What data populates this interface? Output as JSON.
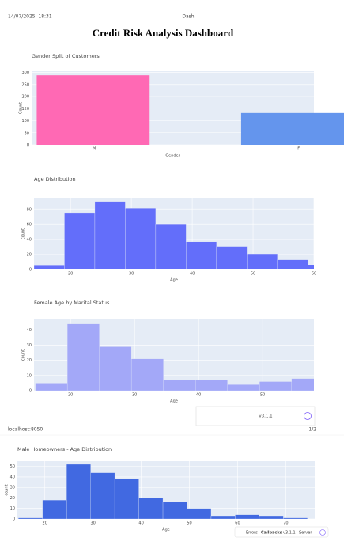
{
  "header": {
    "timestamp": "14/07/2025, 18:31",
    "page_title": "Dash",
    "dashboard_title": "Credit Risk Analysis Dashboard"
  },
  "footer": {
    "url": "localhost:8050",
    "page_number": "1/2"
  },
  "version_badge": {
    "version": "v3.1.1"
  },
  "debug_bar": {
    "errors": "Errors",
    "callbacks": "Callbacks",
    "version": "v3.1.1",
    "server": "Server"
  },
  "chart_data": [
    {
      "type": "bar",
      "title": "Gender Split of Customers",
      "x_label": "Gender",
      "y_label": "Count",
      "categories": [
        "M",
        "F"
      ],
      "values": [
        288,
        135
      ],
      "colors": [
        "#ff69b4",
        "#6495ed"
      ],
      "ylim": [
        0,
        305
      ],
      "yticks": [
        0,
        50,
        100,
        150,
        200,
        250,
        300
      ],
      "grid": true
    },
    {
      "type": "histogram",
      "title": "Age Distribution",
      "x_label": "Age",
      "y_label": "count",
      "bins": [
        14,
        19,
        24,
        29,
        34,
        39,
        44,
        49,
        54,
        59,
        64
      ],
      "values": [
        5,
        75,
        90,
        81,
        60,
        37,
        30,
        20,
        13,
        6
      ],
      "color": "#636efa",
      "xlim": [
        14,
        60
      ],
      "xticks": [
        20,
        30,
        40,
        50,
        60
      ],
      "ylim": [
        0,
        95
      ],
      "yticks": [
        0,
        20,
        40,
        60,
        80
      ],
      "grid": true
    },
    {
      "type": "histogram",
      "title": "Female Age by Marital Status",
      "x_label": "Age",
      "y_label": "count",
      "bins": [
        14.5,
        19.5,
        24.5,
        29.5,
        34.5,
        39.5,
        44.5,
        49.5,
        54.5,
        59.5
      ],
      "values": [
        5,
        44,
        29,
        21,
        7,
        7,
        4,
        6,
        8
      ],
      "color": "#a3a8f8",
      "xlim": [
        14.3,
        58
      ],
      "xticks": [
        20,
        30,
        40,
        50
      ],
      "ylim": [
        0,
        47
      ],
      "yticks": [
        0,
        10,
        20,
        30,
        40
      ],
      "grid": true
    },
    {
      "type": "histogram",
      "title": "Male Homeowners - Age Distribution",
      "x_label": "Age",
      "y_label": "count",
      "bins": [
        14.5,
        19.5,
        24.5,
        29.5,
        34.5,
        39.5,
        44.5,
        49.5,
        54.5,
        59.5,
        64.5,
        69.5,
        74.5
      ],
      "values": [
        1,
        18,
        52,
        44,
        38,
        20,
        16,
        10,
        3,
        4,
        3,
        1
      ],
      "color": "#4169e1",
      "xlim": [
        14.3,
        76
      ],
      "xticks": [
        20,
        30,
        40,
        50,
        60,
        70
      ],
      "ylim": [
        0,
        55
      ],
      "yticks": [
        0,
        10,
        20,
        30,
        40,
        50
      ],
      "grid": true
    }
  ]
}
